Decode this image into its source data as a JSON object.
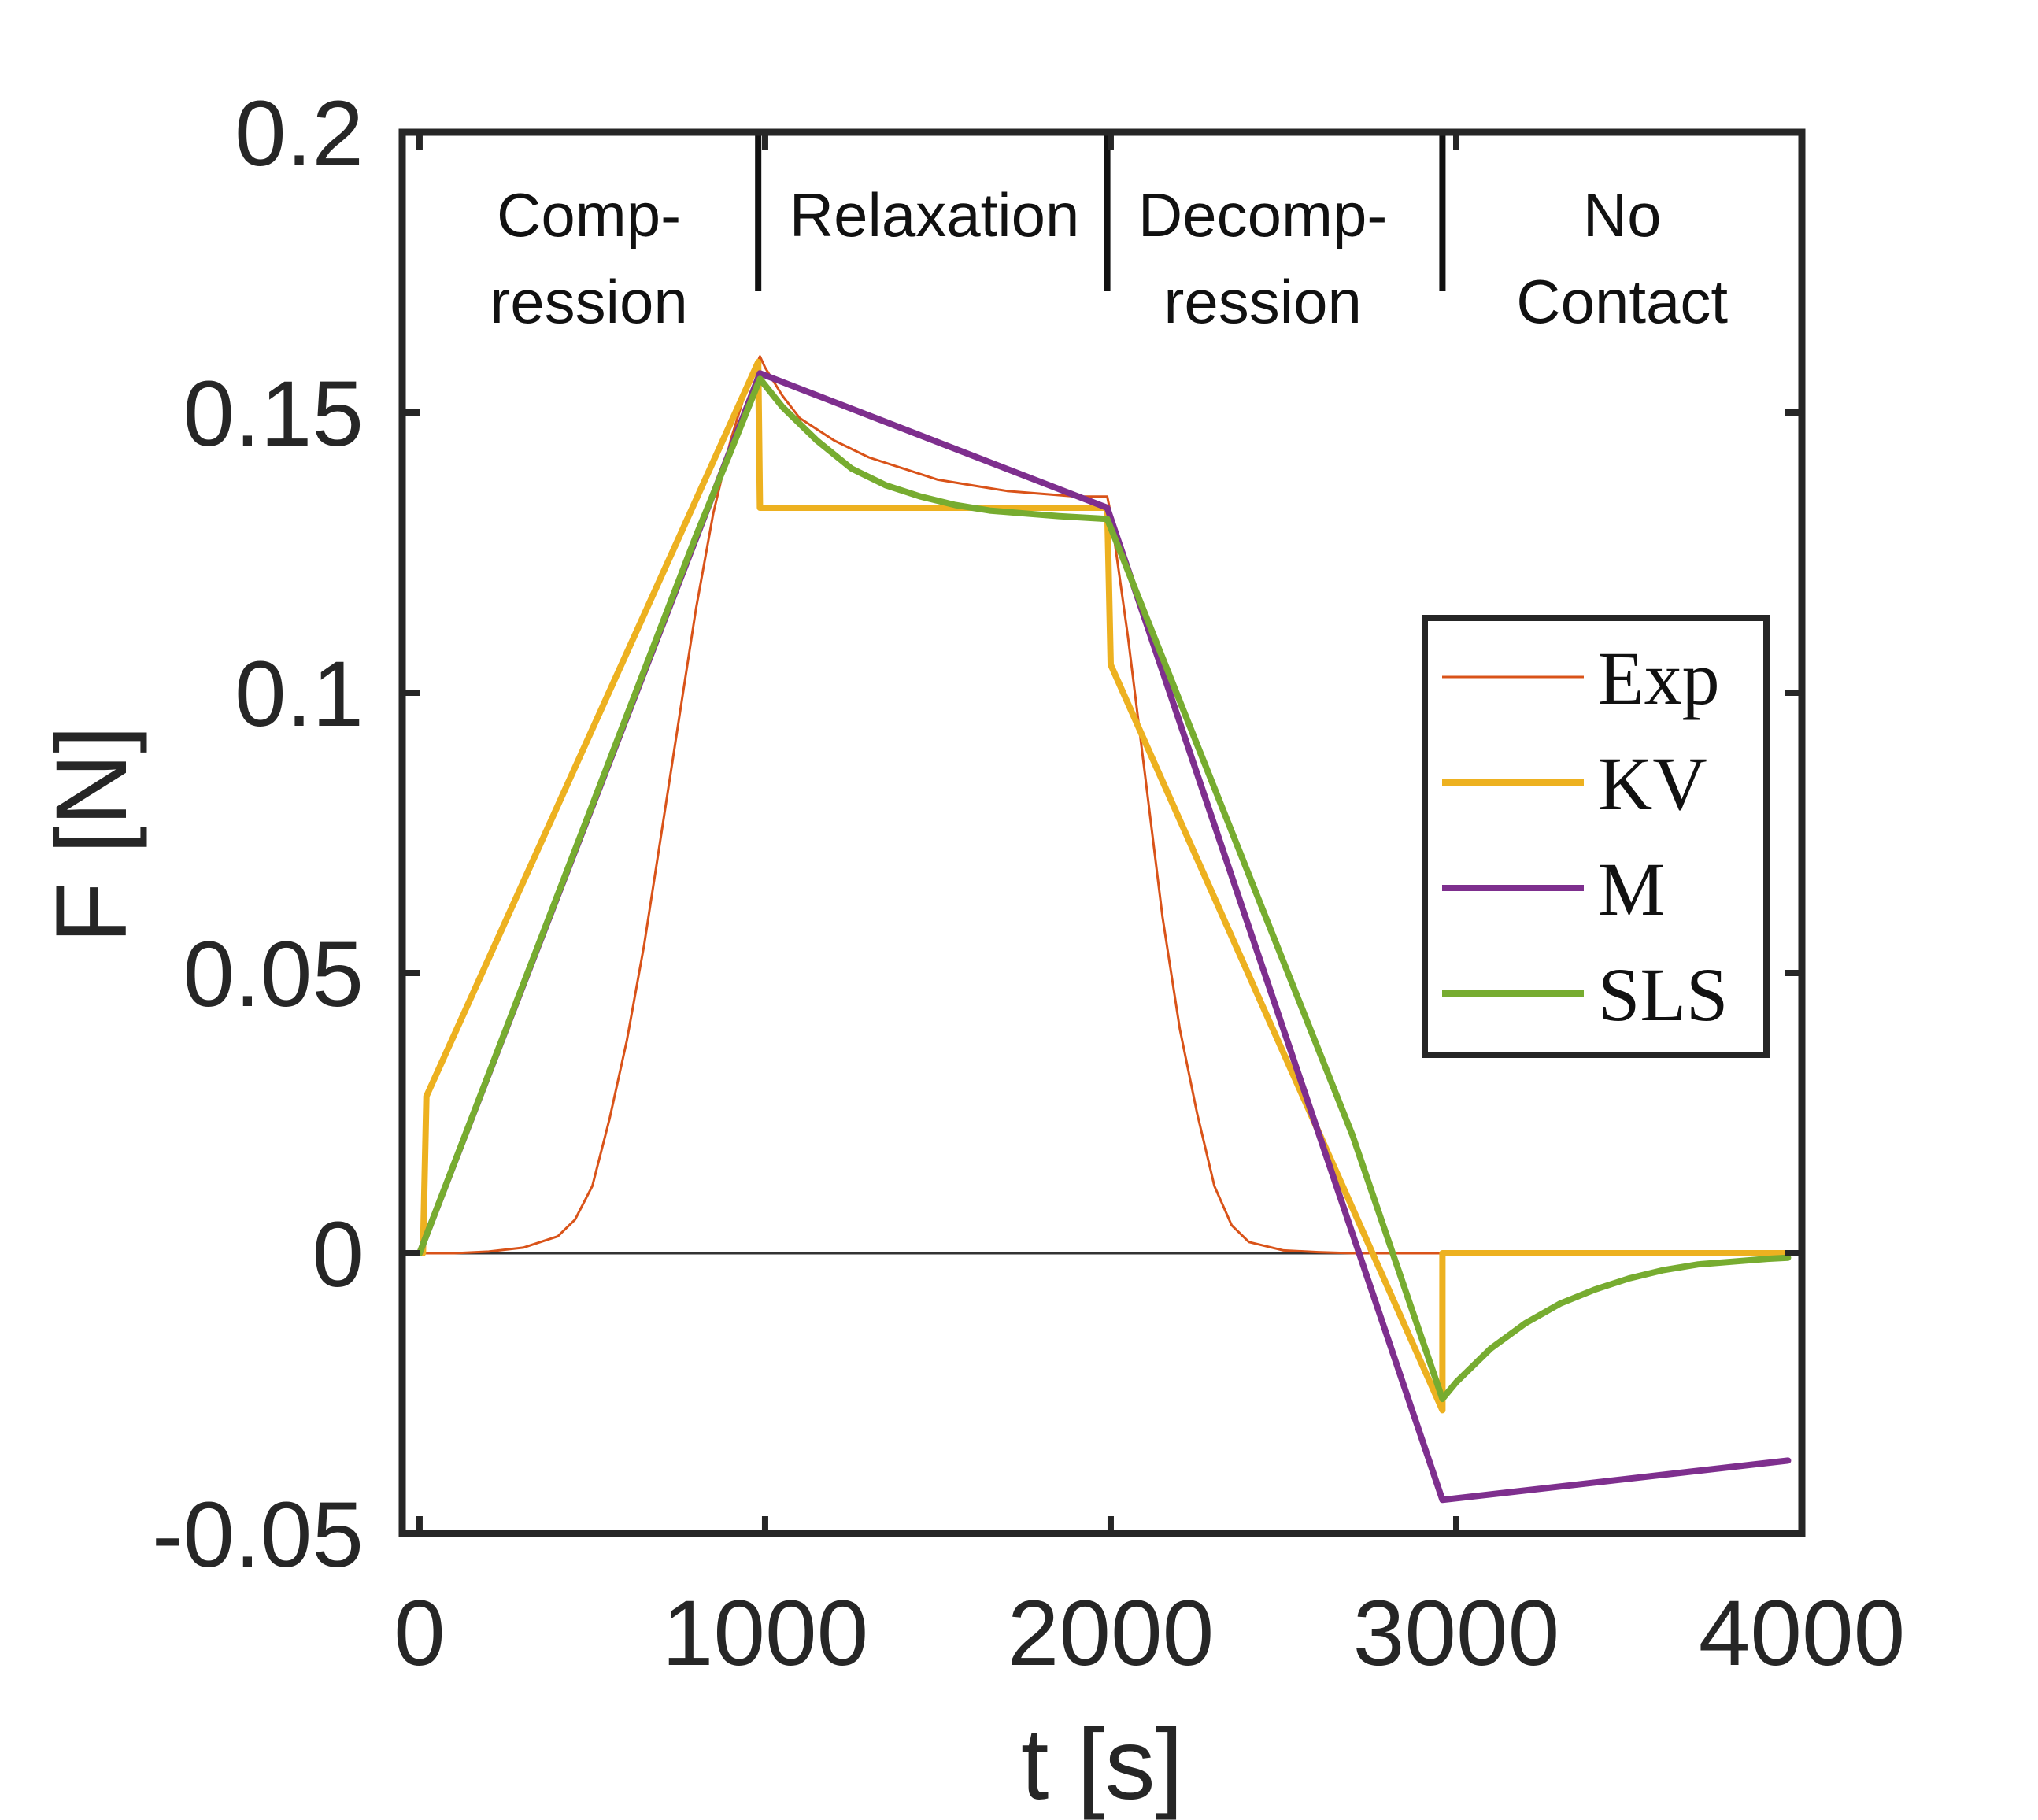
{
  "chart_data": {
    "type": "line",
    "xlabel": "t [s]",
    "ylabel": "F [N]",
    "xlim": [
      -50,
      4000
    ],
    "ylim": [
      -0.05,
      0.2
    ],
    "xticks": [
      0,
      1000,
      2000,
      3000,
      4000
    ],
    "xtick_labels": [
      "0",
      "1000",
      "2000",
      "3000",
      "4000"
    ],
    "yticks": [
      -0.05,
      0,
      0.05,
      0.1,
      0.15,
      0.2
    ],
    "ytick_labels": [
      "-0.05",
      "0",
      "0.05",
      "0.1",
      "0.15",
      "0.2"
    ],
    "zero_line": true,
    "phase_dividers": [
      980,
      1990,
      2960
    ],
    "phases": [
      {
        "x": 490,
        "lines": [
          "Comp-",
          "ression"
        ]
      },
      {
        "x": 1490,
        "lines": [
          "Relaxation"
        ]
      },
      {
        "x": 2440,
        "lines": [
          "Decomp-",
          "ression"
        ]
      },
      {
        "x": 3480,
        "lines": [
          "No",
          "Contact"
        ]
      }
    ],
    "legend_position": "right",
    "colors": {
      "Exp": "#D95319",
      "KV": "#EDB120",
      "M": "#7E2F8E",
      "SLS": "#77AC30"
    },
    "series": [
      {
        "name": "Exp",
        "style": "thin",
        "points": [
          [
            0,
            0
          ],
          [
            100,
            0
          ],
          [
            200,
            0.0003
          ],
          [
            300,
            0.001
          ],
          [
            400,
            0.003
          ],
          [
            450,
            0.006
          ],
          [
            500,
            0.012
          ],
          [
            550,
            0.024
          ],
          [
            600,
            0.038
          ],
          [
            650,
            0.055
          ],
          [
            700,
            0.075
          ],
          [
            750,
            0.095
          ],
          [
            800,
            0.115
          ],
          [
            850,
            0.132
          ],
          [
            900,
            0.145
          ],
          [
            950,
            0.155
          ],
          [
            985,
            0.16
          ],
          [
            1000,
            0.158
          ],
          [
            1050,
            0.153
          ],
          [
            1100,
            0.149
          ],
          [
            1200,
            0.145
          ],
          [
            1300,
            0.142
          ],
          [
            1400,
            0.14
          ],
          [
            1500,
            0.138
          ],
          [
            1600,
            0.137
          ],
          [
            1700,
            0.136
          ],
          [
            1800,
            0.1355
          ],
          [
            1900,
            0.135
          ],
          [
            1990,
            0.135
          ],
          [
            2000,
            0.132
          ],
          [
            2050,
            0.11
          ],
          [
            2100,
            0.085
          ],
          [
            2150,
            0.06
          ],
          [
            2200,
            0.04
          ],
          [
            2250,
            0.025
          ],
          [
            2300,
            0.012
          ],
          [
            2350,
            0.005
          ],
          [
            2400,
            0.002
          ],
          [
            2500,
            0.0005
          ],
          [
            2600,
            0.0002
          ],
          [
            2700,
            0
          ],
          [
            2800,
            0
          ],
          [
            2900,
            0
          ],
          [
            2960,
            0
          ]
        ]
      },
      {
        "name": "KV",
        "style": "thick",
        "points": [
          [
            10,
            0
          ],
          [
            20,
            0.028
          ],
          [
            980,
            0.159
          ],
          [
            985,
            0.133
          ],
          [
            1990,
            0.133
          ],
          [
            2000,
            0.105
          ],
          [
            2960,
            -0.028
          ],
          [
            2960,
            0
          ],
          [
            4000,
            0
          ]
        ]
      },
      {
        "name": "M",
        "style": "thick",
        "points": [
          [
            0,
            0
          ],
          [
            985,
            0.157
          ],
          [
            1990,
            0.133
          ],
          [
            2960,
            -0.044
          ],
          [
            3960,
            -0.037
          ]
        ]
      },
      {
        "name": "SLS",
        "style": "thick",
        "points": [
          [
            0,
            0
          ],
          [
            100,
            0.016
          ],
          [
            200,
            0.032
          ],
          [
            300,
            0.048
          ],
          [
            400,
            0.064
          ],
          [
            500,
            0.08
          ],
          [
            600,
            0.096
          ],
          [
            700,
            0.112
          ],
          [
            800,
            0.128
          ],
          [
            900,
            0.143
          ],
          [
            985,
            0.156
          ],
          [
            1050,
            0.151
          ],
          [
            1150,
            0.145
          ],
          [
            1250,
            0.14
          ],
          [
            1350,
            0.137
          ],
          [
            1450,
            0.135
          ],
          [
            1550,
            0.1335
          ],
          [
            1650,
            0.1325
          ],
          [
            1750,
            0.132
          ],
          [
            1850,
            0.1315
          ],
          [
            1990,
            0.131
          ],
          [
            2100,
            0.114
          ],
          [
            2300,
            0.083
          ],
          [
            2500,
            0.052
          ],
          [
            2700,
            0.021
          ],
          [
            2960,
            -0.026
          ],
          [
            3000,
            -0.023
          ],
          [
            3100,
            -0.017
          ],
          [
            3200,
            -0.0125
          ],
          [
            3300,
            -0.009
          ],
          [
            3400,
            -0.0065
          ],
          [
            3500,
            -0.0045
          ],
          [
            3600,
            -0.003
          ],
          [
            3700,
            -0.002
          ],
          [
            3800,
            -0.0015
          ],
          [
            3900,
            -0.001
          ],
          [
            3960,
            -0.0008
          ]
        ]
      }
    ]
  }
}
